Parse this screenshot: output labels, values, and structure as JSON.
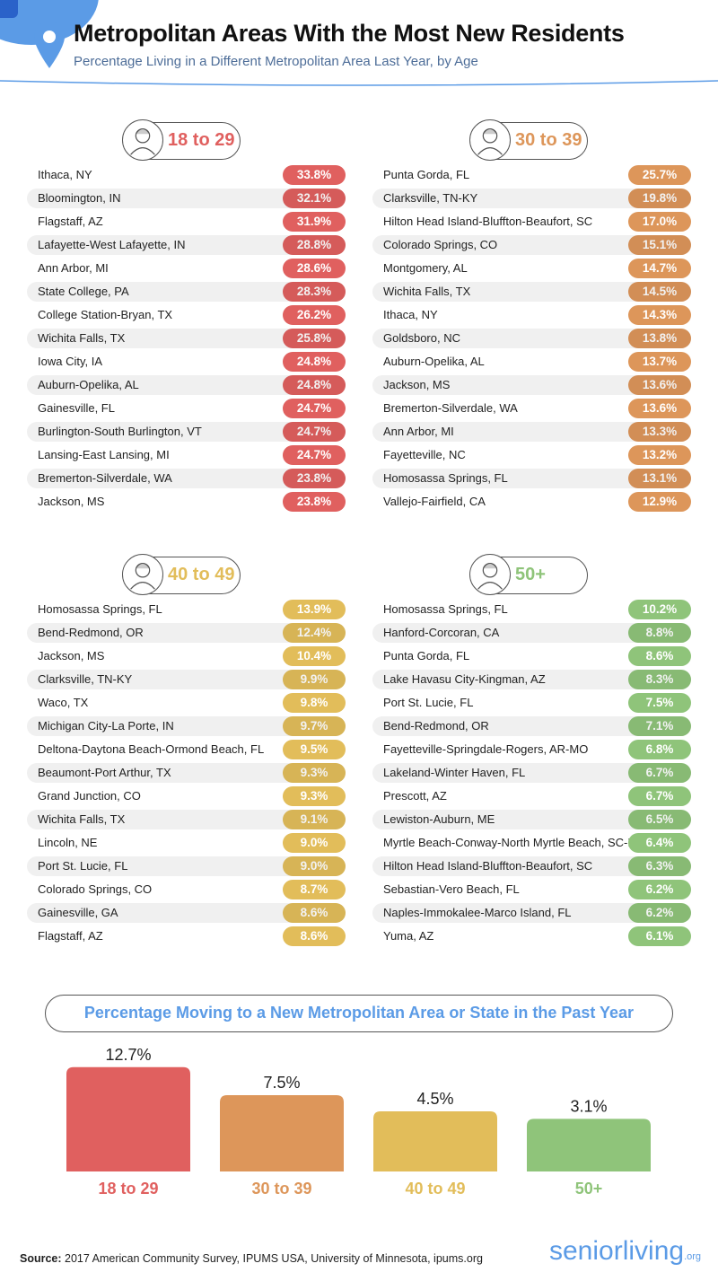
{
  "header": {
    "title": "Metropolitan Areas With the Most New Residents",
    "subtitle": "Percentage Living in a Different Metropolitan Area Last Year, by Age"
  },
  "colors": {
    "g18": "#e0605f",
    "g30": "#dd965a",
    "g40": "#e2bd5a",
    "g50": "#8fc47a",
    "accent": "#5b9be6"
  },
  "groups": [
    {
      "label": "18 to 29",
      "color": "#e0605f",
      "rows": [
        [
          "Ithaca, NY",
          "33.8%"
        ],
        [
          "Bloomington, IN",
          "32.1%"
        ],
        [
          "Flagstaff, AZ",
          "31.9%"
        ],
        [
          "Lafayette-West Lafayette, IN",
          "28.8%"
        ],
        [
          "Ann Arbor, MI",
          "28.6%"
        ],
        [
          "State College, PA",
          "28.3%"
        ],
        [
          "College Station-Bryan, TX",
          "26.2%"
        ],
        [
          "Wichita Falls, TX",
          "25.8%"
        ],
        [
          "Iowa City, IA",
          "24.8%"
        ],
        [
          "Auburn-Opelika, AL",
          "24.8%"
        ],
        [
          "Gainesville, FL",
          "24.7%"
        ],
        [
          "Burlington-South Burlington, VT",
          "24.7%"
        ],
        [
          "Lansing-East Lansing, MI",
          "24.7%"
        ],
        [
          "Bremerton-Silverdale, WA",
          "23.8%"
        ],
        [
          "Jackson, MS",
          "23.8%"
        ]
      ]
    },
    {
      "label": "30 to 39",
      "color": "#dd965a",
      "rows": [
        [
          "Punta Gorda, FL",
          "25.7%"
        ],
        [
          "Clarksville, TN-KY",
          "19.8%"
        ],
        [
          "Hilton Head Island-Bluffton-Beaufort, SC",
          "17.0%"
        ],
        [
          "Colorado Springs, CO",
          "15.1%"
        ],
        [
          "Montgomery, AL",
          "14.7%"
        ],
        [
          "Wichita Falls, TX",
          "14.5%"
        ],
        [
          "Ithaca, NY",
          "14.3%"
        ],
        [
          "Goldsboro, NC",
          "13.8%"
        ],
        [
          "Auburn-Opelika, AL",
          "13.7%"
        ],
        [
          "Jackson, MS",
          "13.6%"
        ],
        [
          "Bremerton-Silverdale, WA",
          "13.6%"
        ],
        [
          "Ann Arbor, MI",
          "13.3%"
        ],
        [
          "Fayetteville, NC",
          "13.2%"
        ],
        [
          "Homosassa Springs, FL",
          "13.1%"
        ],
        [
          "Vallejo-Fairfield, CA",
          "12.9%"
        ]
      ]
    },
    {
      "label": "40 to 49",
      "color": "#e2bd5a",
      "rows": [
        [
          "Homosassa Springs, FL",
          "13.9%"
        ],
        [
          "Bend-Redmond, OR",
          "12.4%"
        ],
        [
          "Jackson, MS",
          "10.4%"
        ],
        [
          "Clarksville, TN-KY",
          "9.9%"
        ],
        [
          "Waco, TX",
          "9.8%"
        ],
        [
          "Michigan City-La Porte, IN",
          "9.7%"
        ],
        [
          "Deltona-Daytona Beach-Ormond Beach, FL",
          "9.5%"
        ],
        [
          "Beaumont-Port Arthur, TX",
          "9.3%"
        ],
        [
          "Grand Junction, CO",
          "9.3%"
        ],
        [
          "Wichita Falls, TX",
          "9.1%"
        ],
        [
          "Lincoln, NE",
          "9.0%"
        ],
        [
          "Port St. Lucie, FL",
          "9.0%"
        ],
        [
          "Colorado Springs, CO",
          "8.7%"
        ],
        [
          "Gainesville, GA",
          "8.6%"
        ],
        [
          "Flagstaff, AZ",
          "8.6%"
        ]
      ]
    },
    {
      "label": "50+",
      "color": "#8fc47a",
      "rows": [
        [
          "Homosassa Springs, FL",
          "10.2%"
        ],
        [
          "Hanford-Corcoran, CA",
          "8.8%"
        ],
        [
          "Punta Gorda, FL",
          "8.6%"
        ],
        [
          "Lake Havasu City-Kingman, AZ",
          "8.3%"
        ],
        [
          "Port St. Lucie, FL",
          "7.5%"
        ],
        [
          "Bend-Redmond, OR",
          "7.1%"
        ],
        [
          "Fayetteville-Springdale-Rogers, AR-MO",
          "6.8%"
        ],
        [
          "Lakeland-Winter Haven, FL",
          "6.7%"
        ],
        [
          "Prescott, AZ",
          "6.7%"
        ],
        [
          "Lewiston-Auburn, ME",
          "6.5%"
        ],
        [
          "Myrtle Beach-Conway-North Myrtle Beach, SC-NC",
          "6.4%"
        ],
        [
          "Hilton Head Island-Bluffton-Beaufort, SC",
          "6.3%"
        ],
        [
          "Sebastian-Vero Beach, FL",
          "6.2%"
        ],
        [
          "Naples-Immokalee-Marco Island, FL",
          "6.2%"
        ],
        [
          "Yuma, AZ",
          "6.1%"
        ]
      ]
    }
  ],
  "chart_data": {
    "type": "bar",
    "title": "Percentage Moving to a New Metropolitan Area or State in the Past Year",
    "categories": [
      "18 to 29",
      "30 to 39",
      "40 to 49",
      "50+"
    ],
    "values": [
      12.7,
      7.5,
      4.5,
      3.1
    ],
    "value_labels": [
      "12.7%",
      "7.5%",
      "4.5%",
      "3.1%"
    ],
    "colors": [
      "#e0605f",
      "#dd965a",
      "#e2bd5a",
      "#8fc47a"
    ]
  },
  "footer": {
    "source_label": "Source:",
    "source_text": " 2017 American Community Survey, IPUMS USA, University of Minnesota, ipums.org",
    "logo": "seniorliving",
    "logo_suffix": ".org"
  }
}
